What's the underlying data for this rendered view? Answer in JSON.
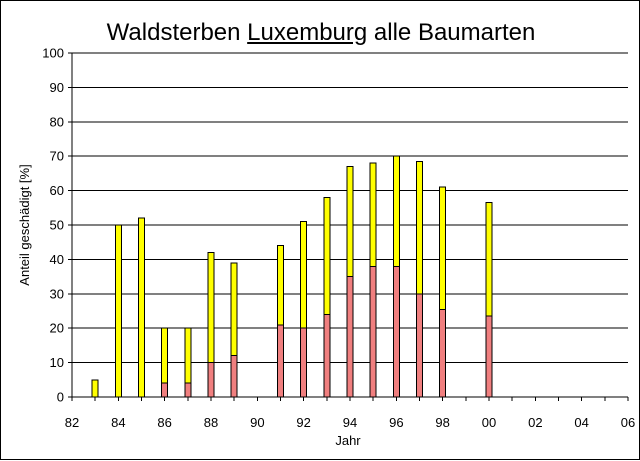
{
  "chart_data": {
    "type": "bar",
    "stacked": true,
    "title_parts": [
      "Waldsterben ",
      "Luxemburg",
      " alle Baumarten"
    ],
    "xlabel": "Jahr",
    "ylabel": "Anteil geschädigt [%]",
    "ylim": [
      0,
      100
    ],
    "yticks": [
      0,
      10,
      20,
      30,
      40,
      50,
      60,
      70,
      80,
      90,
      100
    ],
    "xlim": [
      1982,
      2006
    ],
    "xticks": [
      "82",
      "84",
      "86",
      "88",
      "90",
      "92",
      "94",
      "96",
      "98",
      "00",
      "02",
      "04",
      "06"
    ],
    "grid": "horizontal",
    "years": [
      1983,
      1984,
      1985,
      1986,
      1987,
      1988,
      1989,
      1991,
      1992,
      1993,
      1994,
      1995,
      1996,
      1997,
      1998,
      2000
    ],
    "series": [
      {
        "color": "#f07f7f",
        "values": [
          0,
          0,
          0,
          4,
          4,
          10,
          12,
          21,
          20,
          24,
          35,
          38,
          38,
          30,
          25.5,
          23.5
        ]
      },
      {
        "color": "#ffff00",
        "values": [
          5,
          50,
          52,
          16,
          16,
          32,
          27,
          23,
          31,
          34,
          32,
          30,
          32,
          38.5,
          35.5,
          33
        ]
      }
    ]
  }
}
